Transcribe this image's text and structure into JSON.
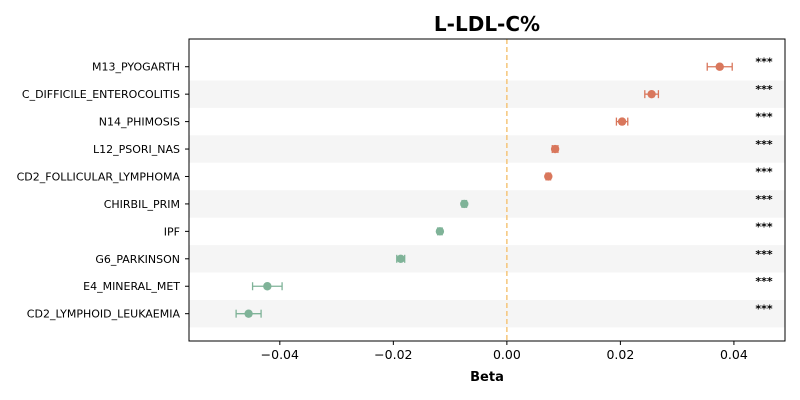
{
  "chart_data": {
    "type": "scatter",
    "title": "L-LDL-C%",
    "xlabel": "Beta",
    "ylabel": "",
    "xlim": [
      -0.056,
      0.049
    ],
    "xticks": [
      -0.04,
      -0.02,
      0.0,
      0.02,
      0.04
    ],
    "xtick_labels": [
      "−0.04",
      "−0.02",
      "0.00",
      "0.02",
      "0.04"
    ],
    "reference_line": {
      "x": 0.0,
      "color": "#f5c57a",
      "style": "dashed"
    },
    "colors": {
      "positive": "#d9775c",
      "negative": "#7fb398",
      "band": "#f5f5f5"
    },
    "grid": false,
    "legend": "none",
    "categories": [
      "M13_PYOGARTH",
      "C_DIFFICILE_ENTEROCOLITIS",
      "N14_PHIMOSIS",
      "L12_PSORI_NAS",
      "CD2_FOLLICULAR_LYMPHOMA",
      "CHIRBIL_PRIM",
      "IPF",
      "G6_PARKINSON",
      "E4_MINERAL_MET",
      "CD2_LYMPHOID_LEUKAEMIA"
    ],
    "values": [
      0.0375,
      0.0255,
      0.0203,
      0.0085,
      0.0073,
      -0.0075,
      -0.0118,
      -0.0187,
      -0.0422,
      -0.0455
    ],
    "ci_low": [
      0.0353,
      0.0243,
      0.0193,
      0.008,
      0.0069,
      -0.0079,
      -0.0122,
      -0.0194,
      -0.0448,
      -0.0477
    ],
    "ci_high": [
      0.0397,
      0.0267,
      0.0213,
      0.009,
      0.0077,
      -0.0071,
      -0.0114,
      -0.018,
      -0.0396,
      -0.0433
    ],
    "significance": [
      "***",
      "***",
      "***",
      "***",
      "***",
      "***",
      "***",
      "***",
      "***",
      "***"
    ]
  }
}
